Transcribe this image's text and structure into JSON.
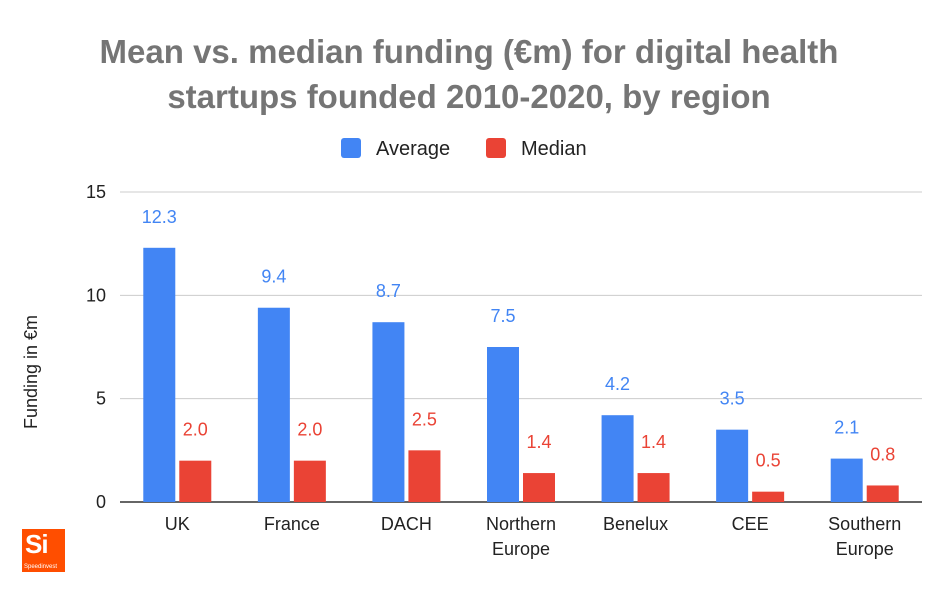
{
  "chart_data": {
    "type": "bar",
    "title_lines": [
      "Mean vs. median funding (€m) for digital health",
      "startups founded 2010-2020, by region"
    ],
    "categories": [
      [
        "UK"
      ],
      [
        "France"
      ],
      [
        "DACH"
      ],
      [
        "Northern",
        "Europe"
      ],
      [
        "Benelux"
      ],
      [
        "CEE"
      ],
      [
        "Southern",
        "Europe"
      ]
    ],
    "series": [
      {
        "name": "Average",
        "color": "#4285f4",
        "values": [
          12.3,
          9.4,
          8.7,
          7.5,
          4.2,
          3.5,
          2.1
        ],
        "labels": [
          "12.3",
          "9.4",
          "8.7",
          "7.5",
          "4.2",
          "3.5",
          "2.1"
        ]
      },
      {
        "name": "Median",
        "color": "#ea4335",
        "values": [
          2.0,
          2.0,
          2.5,
          1.4,
          1.4,
          0.5,
          0.8
        ],
        "labels": [
          "2.0",
          "2.0",
          "2.5",
          "1.4",
          "1.4",
          "0.5",
          "0.8"
        ]
      }
    ],
    "ylabel": "Funding in €m",
    "xlabel": "",
    "ylim": [
      0,
      15
    ],
    "yticks": [
      0,
      5,
      10,
      15
    ],
    "grid": true,
    "legend": "top-center"
  },
  "logo": {
    "mark": "Si",
    "brand": "Speedinvest",
    "color": "#ff4e00"
  }
}
